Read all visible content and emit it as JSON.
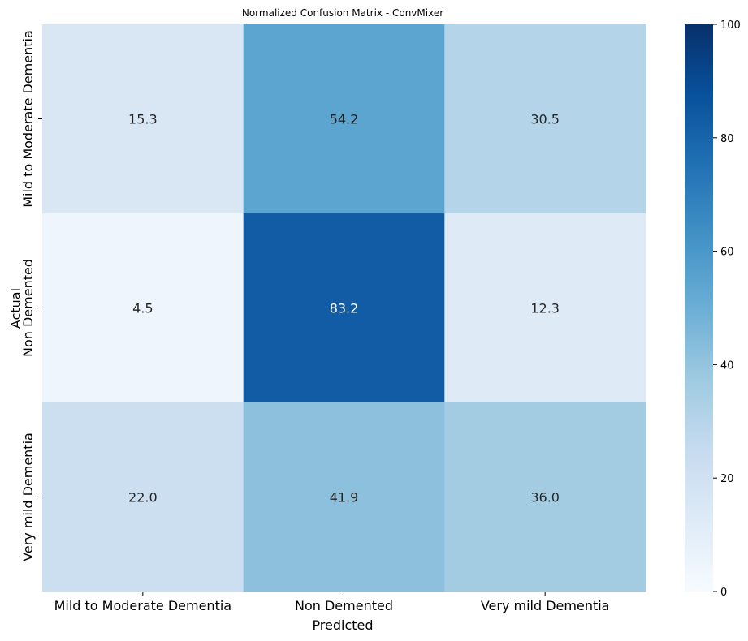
{
  "chart_data": {
    "type": "heatmap",
    "title": "Normalized Confusion Matrix - ConvMixer",
    "xlabel": "Predicted",
    "ylabel": "Actual",
    "x_categories": [
      "Mild to Moderate Dementia",
      "Non Demented",
      "Very mild Dementia"
    ],
    "y_categories": [
      "Mild to Moderate Dementia",
      "Non Demented",
      "Very mild Dementia"
    ],
    "values": [
      [
        15.3,
        54.2,
        30.5
      ],
      [
        4.5,
        83.2,
        12.3
      ],
      [
        22.0,
        41.9,
        36.0
      ]
    ],
    "value_labels": [
      [
        "15.3",
        "54.2",
        "30.5"
      ],
      [
        "4.5",
        "83.2",
        "12.3"
      ],
      [
        "22.0",
        "41.9",
        "36.0"
      ]
    ],
    "colormap": "Blues",
    "vmin": 0,
    "vmax": 100,
    "colorbar_ticks": [
      {
        "value": 0,
        "label": "0"
      },
      {
        "value": 20,
        "label": "20"
      },
      {
        "value": 40,
        "label": "40"
      },
      {
        "value": 60,
        "label": "60"
      },
      {
        "value": 80,
        "label": "80"
      },
      {
        "value": 100,
        "label": "100"
      }
    ],
    "grid": false,
    "colorbar": "right"
  }
}
